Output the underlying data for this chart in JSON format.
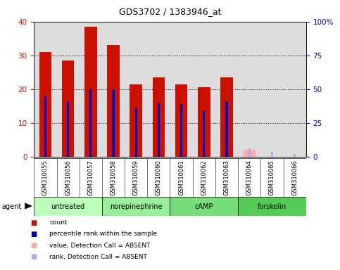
{
  "title": "GDS3702 / 1383946_at",
  "samples": [
    "GSM310055",
    "GSM310056",
    "GSM310057",
    "GSM310058",
    "GSM310059",
    "GSM310060",
    "GSM310061",
    "GSM310062",
    "GSM310063",
    "GSM310064",
    "GSM310065",
    "GSM310066"
  ],
  "count_values": [
    31,
    28.5,
    38.5,
    33,
    21.5,
    23.5,
    21.5,
    20.5,
    23.5,
    0,
    0,
    0
  ],
  "percentile_values": [
    18,
    16.5,
    20,
    20,
    14.5,
    16,
    15.5,
    13.5,
    16.5,
    0,
    0,
    0
  ],
  "absent_count": [
    0,
    0,
    0,
    0,
    0,
    0,
    0,
    0,
    0,
    2.0,
    0,
    0
  ],
  "absent_rank": [
    0,
    0,
    0,
    0,
    0,
    0,
    0,
    0,
    0,
    2.5,
    1.5,
    0.8
  ],
  "count_color": "#cc1100",
  "percentile_color": "#0000cc",
  "absent_count_color": "#ffaaaa",
  "absent_rank_color": "#aaaaff",
  "groups": [
    {
      "label": "untreated",
      "start": 0,
      "end": 3,
      "color": "#bbffbb"
    },
    {
      "label": "norepinephrine",
      "start": 3,
      "end": 6,
      "color": "#99ee99"
    },
    {
      "label": "cAMP",
      "start": 6,
      "end": 9,
      "color": "#77dd77"
    },
    {
      "label": "forskolin",
      "start": 9,
      "end": 12,
      "color": "#55cc55"
    }
  ],
  "ylim_left": [
    0,
    40
  ],
  "ylim_right": [
    0,
    100
  ],
  "yticks_left": [
    0,
    10,
    20,
    30,
    40
  ],
  "yticks_right": [
    0,
    25,
    50,
    75,
    100
  ],
  "ytick_labels_right": [
    "0",
    "25",
    "50",
    "75",
    "100%"
  ],
  "ylabel_left_color": "#cc1100",
  "ylabel_right_color": "#0000cc",
  "agent_label": "agent",
  "legend_items": [
    {
      "label": "count",
      "color": "#cc1100"
    },
    {
      "label": "percentile rank within the sample",
      "color": "#0000cc"
    },
    {
      "label": "value, Detection Call = ABSENT",
      "color": "#ffaaaa"
    },
    {
      "label": "rank, Detection Call = ABSENT",
      "color": "#aaaaff"
    }
  ],
  "background_color": "#ffffff",
  "plot_bg_color": "#dddddd"
}
